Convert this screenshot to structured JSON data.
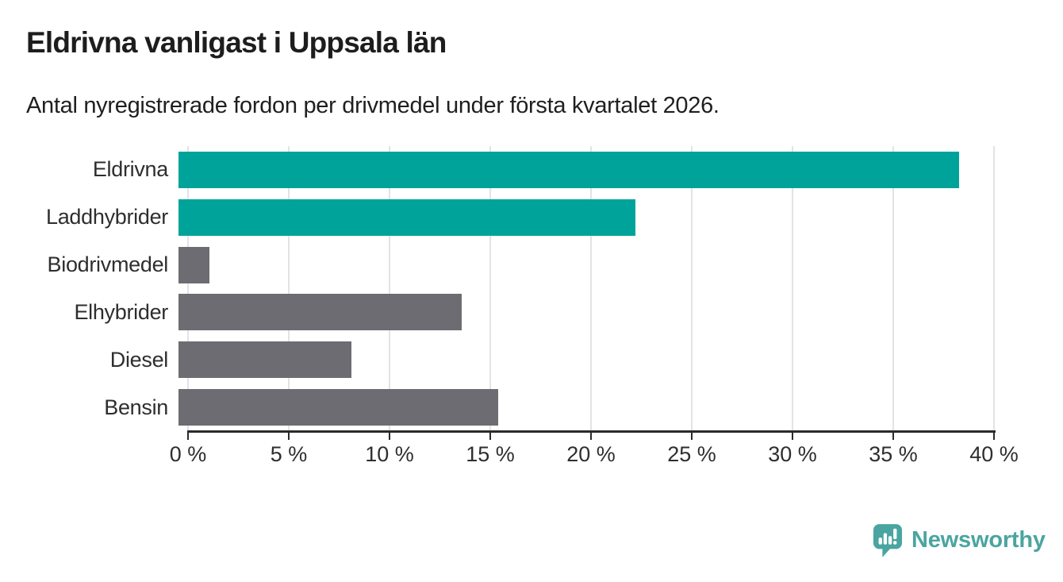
{
  "header": {
    "title": "Eldrivna vanligast i Uppsala län",
    "subtitle": "Antal nyregistrerade fordon per drivmedel under första kvartalet 2026."
  },
  "chart_data": {
    "type": "bar",
    "orientation": "horizontal",
    "categories": [
      "Eldrivna",
      "Laddhybrider",
      "Biodrivmedel",
      "Elhybrider",
      "Diesel",
      "Bensin"
    ],
    "values": [
      38.3,
      22.4,
      1.5,
      13.9,
      8.5,
      15.7
    ],
    "unit": "%",
    "xlim": [
      0,
      40
    ],
    "x_ticks": [
      "0 %",
      "5 %",
      "10 %",
      "15 %",
      "20 %",
      "25 %",
      "30 %",
      "35 %",
      "40 %"
    ],
    "x_tick_values": [
      0,
      5,
      10,
      15,
      20,
      25,
      30,
      35,
      40
    ],
    "bar_colors": [
      "#00a39a",
      "#00a39a",
      "#6d6c72",
      "#6d6c72",
      "#6d6c72",
      "#6d6c72"
    ],
    "highlight_color": "#00a39a",
    "base_color": "#6d6c72",
    "grid": true,
    "gridline_color": "#e3e3e3",
    "axis_color": "#2b2b2b",
    "title": "Eldrivna vanligast i Uppsala län",
    "xlabel": "",
    "ylabel": ""
  },
  "footer": {
    "brand": "Newsworthy",
    "brand_color": "#4aa5a1",
    "logo_icon": "speech-bubble-bar-chart-icon"
  }
}
